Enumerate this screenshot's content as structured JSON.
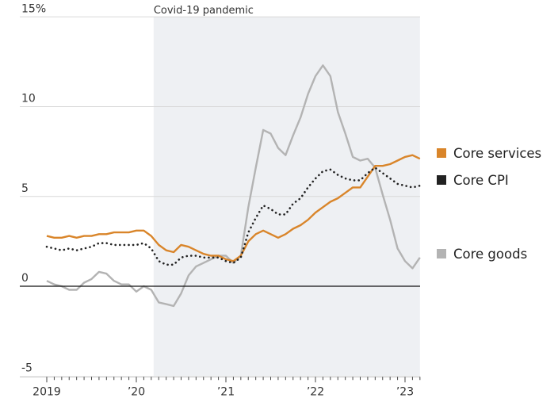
{
  "chart_data": {
    "type": "line",
    "title": "",
    "xlabel": "",
    "ylabel": "",
    "y_unit": "%",
    "ylim": [
      -5,
      15
    ],
    "yticks": [
      -5,
      0,
      5,
      10,
      15
    ],
    "ytick_labels": [
      "-5",
      "0",
      "5",
      "10",
      "15%"
    ],
    "x_start": "2019-01",
    "x_end": "2023-03",
    "x_frequency": "monthly",
    "xtick_labels": [
      {
        "date": "2019-01",
        "label": "2019"
      },
      {
        "date": "2020-01",
        "label": "’20"
      },
      {
        "date": "2021-01",
        "label": "’21"
      },
      {
        "date": "2022-01",
        "label": "’22"
      },
      {
        "date": "2023-01",
        "label": "’23"
      }
    ],
    "grid": true,
    "legend_placement": "right",
    "annotation": {
      "label": "Covid-19 pandemic",
      "start": "2020-03",
      "end": "2023-03",
      "color": "#eef0f3"
    },
    "series": [
      {
        "name": "Core services",
        "color": "#d9852a",
        "style": "solid",
        "values": [
          2.8,
          2.7,
          2.7,
          2.8,
          2.7,
          2.8,
          2.8,
          2.9,
          2.9,
          3.0,
          3.0,
          3.0,
          3.1,
          3.1,
          2.8,
          2.3,
          2.0,
          1.9,
          2.3,
          2.2,
          2.0,
          1.8,
          1.7,
          1.7,
          1.5,
          1.4,
          1.7,
          2.5,
          2.9,
          3.1,
          2.9,
          2.7,
          2.9,
          3.2,
          3.4,
          3.7,
          4.1,
          4.4,
          4.7,
          4.9,
          5.2,
          5.5,
          5.5,
          6.1,
          6.7,
          6.7,
          6.8,
          7.0,
          7.2,
          7.3,
          7.1
        ]
      },
      {
        "name": "Core CPI",
        "color": "#222222",
        "style": "dotted",
        "values": [
          2.2,
          2.1,
          2.0,
          2.1,
          2.0,
          2.1,
          2.2,
          2.4,
          2.4,
          2.3,
          2.3,
          2.3,
          2.3,
          2.4,
          2.1,
          1.4,
          1.2,
          1.2,
          1.6,
          1.7,
          1.7,
          1.6,
          1.6,
          1.6,
          1.4,
          1.3,
          1.6,
          3.0,
          3.8,
          4.5,
          4.3,
          4.0,
          4.0,
          4.6,
          4.9,
          5.5,
          6.0,
          6.4,
          6.5,
          6.2,
          6.0,
          5.9,
          5.9,
          6.3,
          6.6,
          6.3,
          6.0,
          5.7,
          5.6,
          5.5,
          5.6
        ]
      },
      {
        "name": "Core goods",
        "color": "#b3b3b3",
        "style": "solid",
        "values": [
          0.3,
          0.1,
          0.0,
          -0.2,
          -0.2,
          0.2,
          0.4,
          0.8,
          0.7,
          0.3,
          0.1,
          0.1,
          -0.3,
          0.0,
          -0.2,
          -0.9,
          -1.0,
          -1.1,
          -0.4,
          0.6,
          1.1,
          1.3,
          1.5,
          1.7,
          1.7,
          1.3,
          1.7,
          4.4,
          6.6,
          8.7,
          8.5,
          7.7,
          7.3,
          8.4,
          9.4,
          10.7,
          11.7,
          12.3,
          11.7,
          9.7,
          8.5,
          7.2,
          7.0,
          7.1,
          6.6,
          5.1,
          3.7,
          2.1,
          1.4,
          1.0,
          1.6
        ]
      }
    ],
    "legend": [
      {
        "name": "Core services",
        "color": "#d9852a"
      },
      {
        "name": "Core CPI",
        "color": "#222222"
      },
      {
        "name": "Core goods",
        "color": "#b3b3b3"
      }
    ]
  }
}
